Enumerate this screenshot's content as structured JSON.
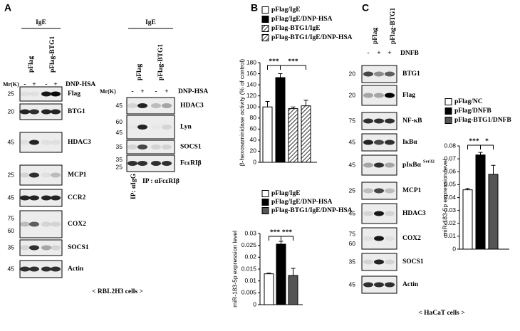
{
  "panel_a": {
    "label": "A",
    "blot_left": {
      "header": "IgE",
      "lanes": [
        "pFlag",
        "pFlag-BTG1"
      ],
      "mw_title": "Mr(K)",
      "treatment_signs": [
        "-",
        "+",
        "-",
        "+"
      ],
      "treatment": "DNP-HSA",
      "rows": [
        {
          "label": "Flag",
          "mw": [
            25
          ]
        },
        {
          "label": "BTG1",
          "mw": [
            20
          ]
        },
        {
          "label": "HDAC3",
          "mw": [
            45
          ]
        },
        {
          "label": "MCP1",
          "mw": [
            25
          ]
        },
        {
          "label": "CCR2",
          "mw": [
            45
          ]
        },
        {
          "label": "COX2",
          "mw": [
            75,
            60
          ]
        },
        {
          "label": "SOCS1",
          "mw": [
            35
          ]
        },
        {
          "label": "Actin",
          "mw": [
            45
          ]
        }
      ]
    },
    "blot_right": {
      "header": "IgE",
      "lanes": [
        "pFlag",
        "pFlag-BTG1"
      ],
      "mw_title": "Mr(K)",
      "treatment_signs": [
        "-",
        "+",
        "-",
        "+"
      ],
      "treatment": "DNP-HSA",
      "rows": [
        {
          "label": "HDAC3",
          "mw": [
            45
          ]
        },
        {
          "label": "Lyn",
          "mw": [
            60,
            45
          ]
        },
        {
          "label": "SOCS1",
          "mw": [
            35
          ]
        },
        {
          "label": "FcεRIβ",
          "mw": [
            35,
            25
          ]
        }
      ],
      "ip_control": "IP: αIgG",
      "ip_target": "IP : αFcεRIβ"
    },
    "caption": "< RBL2H3 cells >"
  },
  "panel_b": {
    "label": "B"
  },
  "panel_c": {
    "label": "C",
    "blot": {
      "lanes": [
        "pFlag",
        "pFlag-BTG1"
      ],
      "treatment_signs": [
        "-",
        "+",
        "+"
      ],
      "treatment": "DNFB",
      "rows": [
        {
          "label": "BTG1",
          "mw": [
            20
          ]
        },
        {
          "label": "Flag",
          "mw": [
            20
          ]
        },
        {
          "label": "NF-κB",
          "mw": [
            75
          ]
        },
        {
          "label": "IκBα",
          "mw": [
            45
          ]
        },
        {
          "label": "pIκBα",
          "superscript": "Ser32",
          "mw": [
            45
          ]
        },
        {
          "label": "MCP1",
          "mw": [
            25
          ]
        },
        {
          "label": "HDAC3",
          "mw": [
            45
          ]
        },
        {
          "label": "COX2",
          "mw": [
            75,
            60
          ]
        },
        {
          "label": "SOCS1",
          "mw": [
            35
          ]
        },
        {
          "label": "Actin",
          "mw": [
            45
          ]
        }
      ]
    },
    "caption": "< HaCaT cells >"
  },
  "chart_data": [
    {
      "type": "bar",
      "ylabel": "β-hexosaminidase activity (% of control)",
      "ylim": [
        0,
        180
      ],
      "yticks": [
        0,
        20,
        40,
        60,
        80,
        100,
        120,
        140,
        160,
        180
      ],
      "series": [
        {
          "name": "pFlag/IgE",
          "color": "#ffffff",
          "values": [
            100
          ],
          "errors": [
            10
          ]
        },
        {
          "name": "pFlag/IgE/DNP-HSA",
          "color": "#000000",
          "values": [
            153
          ],
          "errors": [
            7
          ]
        },
        {
          "name": "pFlag-BTG1/IgE",
          "color": "#ffffff",
          "hatch": true,
          "values": [
            97
          ],
          "errors": [
            3
          ]
        },
        {
          "name": "pFlag-BTG1/IgE/DNP-HSA",
          "color": "#ffffff",
          "hatch": true,
          "values": [
            102
          ],
          "errors": [
            10
          ]
        }
      ],
      "annotations": [
        "***",
        "***"
      ]
    },
    {
      "type": "bar",
      "ylabel": "miR-183-5p expression level",
      "ylim": [
        0,
        0.03
      ],
      "yticks": [
        0,
        0.005,
        0.01,
        0.015,
        0.02,
        0.025,
        0.03
      ],
      "series": [
        {
          "name": "pFlag/IgE",
          "color": "#ffffff",
          "values": [
            0.013
          ],
          "errors": [
            0.0003
          ]
        },
        {
          "name": "pFlag/IgE/DNP-HSA",
          "color": "#000000",
          "values": [
            0.0255
          ],
          "errors": [
            0.0012
          ]
        },
        {
          "name": "pFlag-BTG1/IgE/DNP-HSA",
          "color": "#555555",
          "values": [
            0.0123
          ],
          "errors": [
            0.003
          ]
        }
      ],
      "annotations": [
        "***",
        "***"
      ]
    },
    {
      "type": "bar",
      "ylabel": "miR-183-5p expression level",
      "ylim": [
        0,
        0.08
      ],
      "yticks": [
        0,
        0.01,
        0.02,
        0.03,
        0.04,
        0.05,
        0.06,
        0.07,
        0.08
      ],
      "series": [
        {
          "name": "pFlag/NC",
          "color": "#ffffff",
          "values": [
            0.046
          ],
          "errors": [
            0.001
          ]
        },
        {
          "name": "pFlag/DNFB",
          "color": "#000000",
          "values": [
            0.073
          ],
          "errors": [
            0.002
          ]
        },
        {
          "name": "pFlag-BTG1/DNFB",
          "color": "#555555",
          "values": [
            0.058
          ],
          "errors": [
            0.007
          ]
        }
      ],
      "annotations": [
        "***",
        "*"
      ]
    }
  ]
}
